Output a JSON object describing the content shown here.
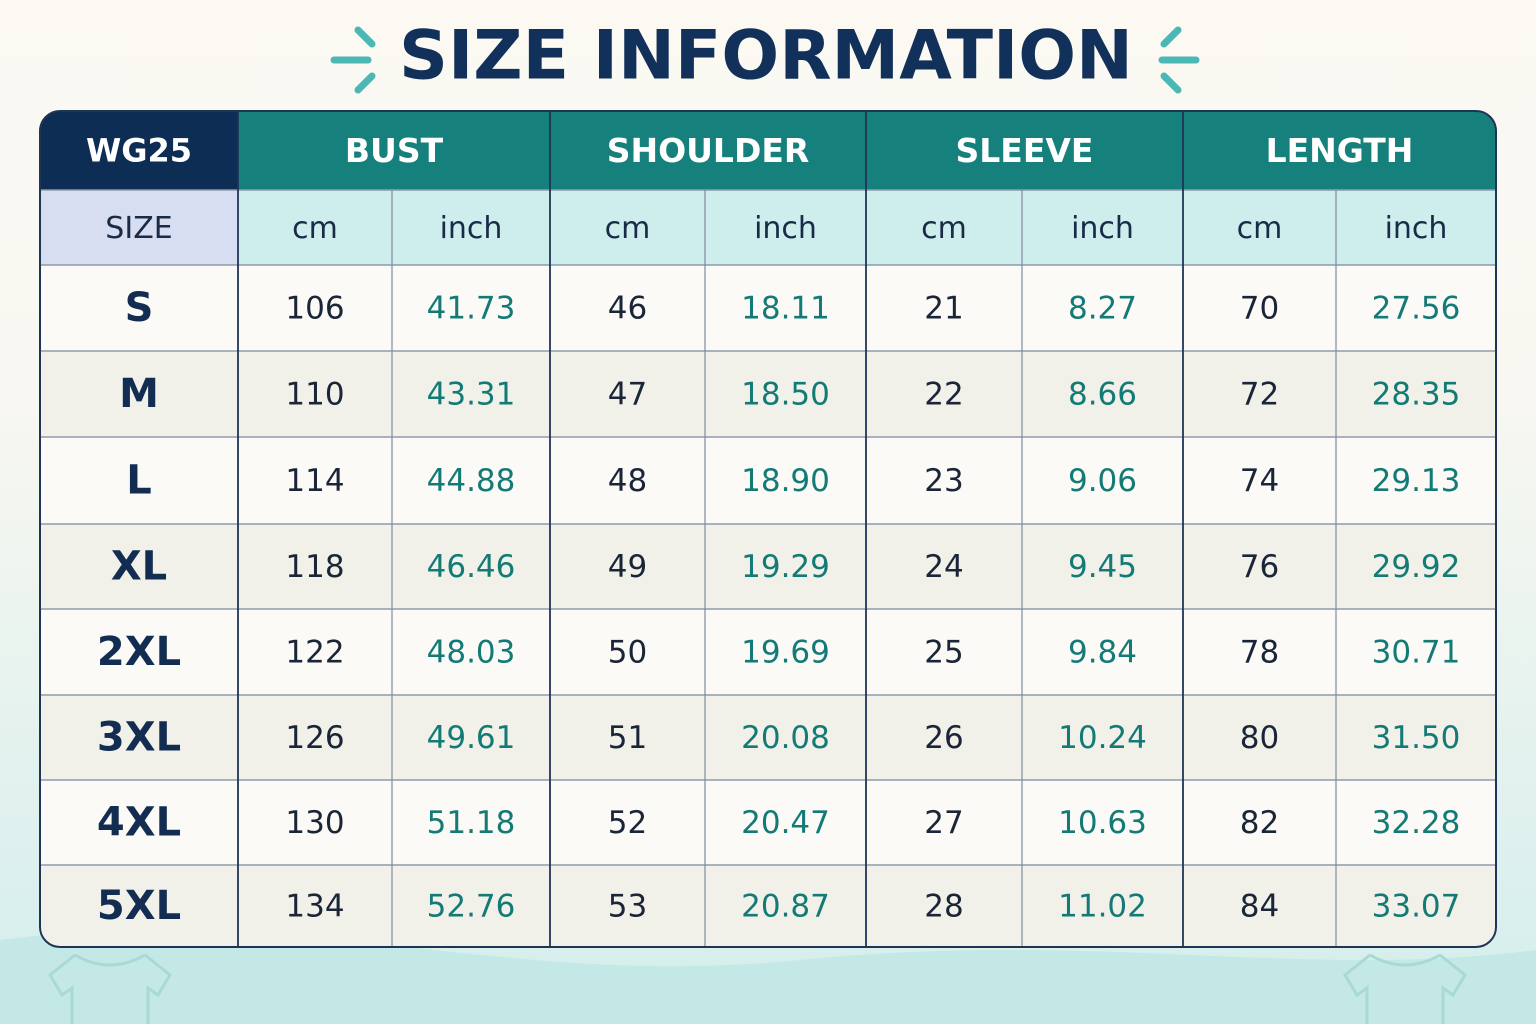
{
  "title": "SIZE INFORMATION",
  "table": {
    "code": "WG25",
    "size_label": "SIZE",
    "groups": [
      "BUST",
      "SHOULDER",
      "SLEEVE",
      "LENGTH"
    ],
    "units": [
      "cm",
      "inch",
      "cm",
      "inch",
      "cm",
      "inch",
      "cm",
      "inch"
    ],
    "rows": [
      {
        "size": "S",
        "values": [
          "106",
          "41.73",
          "46",
          "18.11",
          "21",
          "8.27",
          "70",
          "27.56"
        ]
      },
      {
        "size": "M",
        "values": [
          "110",
          "43.31",
          "47",
          "18.50",
          "22",
          "8.66",
          "72",
          "28.35"
        ]
      },
      {
        "size": "L",
        "values": [
          "114",
          "44.88",
          "48",
          "18.90",
          "23",
          "9.06",
          "74",
          "29.13"
        ]
      },
      {
        "size": "XL",
        "values": [
          "118",
          "46.46",
          "49",
          "19.29",
          "24",
          "9.45",
          "76",
          "29.92"
        ]
      },
      {
        "size": "2XL",
        "values": [
          "122",
          "48.03",
          "50",
          "19.69",
          "25",
          "9.84",
          "78",
          "30.71"
        ]
      },
      {
        "size": "3XL",
        "values": [
          "126",
          "49.61",
          "51",
          "20.08",
          "26",
          "10.24",
          "80",
          "31.50"
        ]
      },
      {
        "size": "4XL",
        "values": [
          "130",
          "51.18",
          "52",
          "20.47",
          "27",
          "10.63",
          "82",
          "32.28"
        ]
      },
      {
        "size": "5XL",
        "values": [
          "134",
          "52.76",
          "53",
          "20.87",
          "28",
          "11.02",
          "84",
          "33.07"
        ]
      }
    ]
  }
}
